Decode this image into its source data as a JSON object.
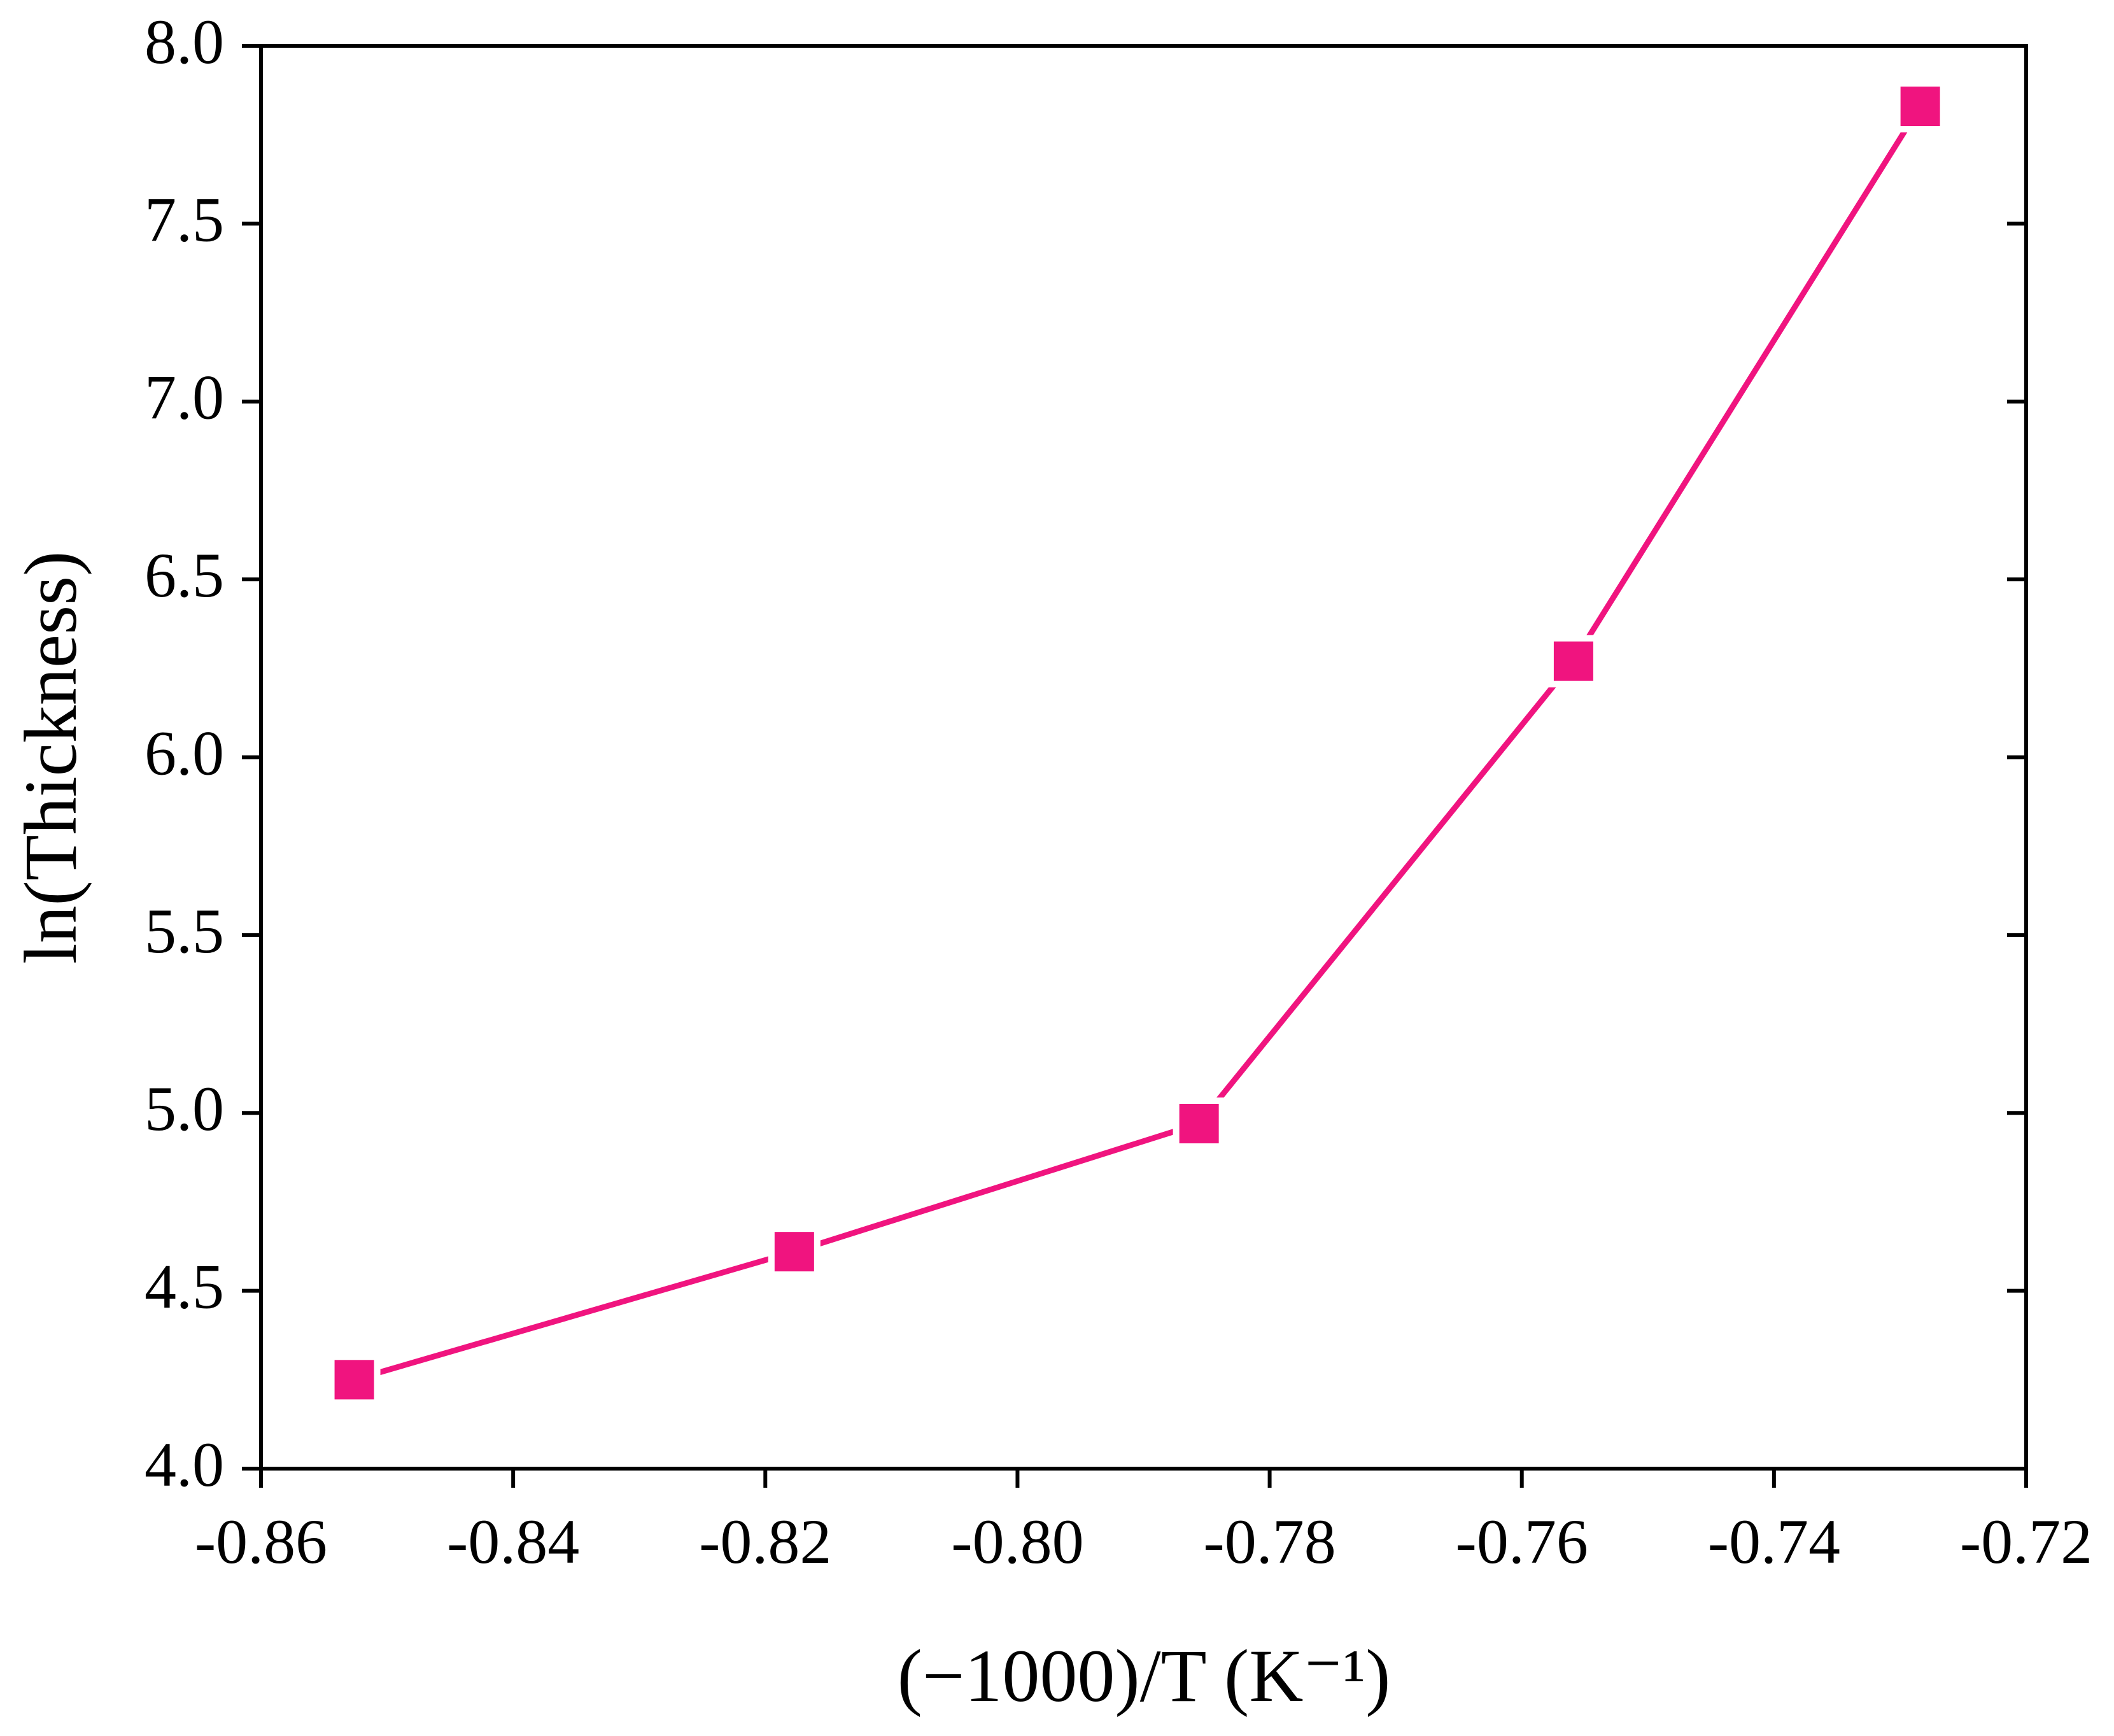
{
  "chart_data": {
    "type": "line",
    "xlabel": "(−1000)/T  (K⁻¹)",
    "ylabel": "ln(Thickness)",
    "series": [
      {
        "color": "#f0147f",
        "x": [
          -0.8526,
          -0.8177,
          -0.7856,
          -0.7559,
          -0.7284
        ],
        "values": [
          4.25,
          4.61,
          4.97,
          6.27,
          7.83
        ]
      }
    ],
    "marker": "square",
    "xlim": [
      -0.86,
      -0.72
    ],
    "xticks": [
      -0.86,
      -0.84,
      -0.82,
      {
        "value": -0.8,
        "label": "-0.80"
      },
      -0.78,
      -0.76,
      -0.74,
      -0.72
    ],
    "ylim": [
      4.0,
      8.0
    ],
    "yticks": [
      {
        "value": 4,
        "label": "4.0"
      },
      4.5,
      {
        "value": 5,
        "label": "5.0"
      },
      5.5,
      {
        "value": 6,
        "label": "6.0"
      },
      6.5,
      {
        "value": 7,
        "label": "7.0"
      },
      7.5,
      {
        "value": 8,
        "label": "8.0"
      }
    ]
  }
}
